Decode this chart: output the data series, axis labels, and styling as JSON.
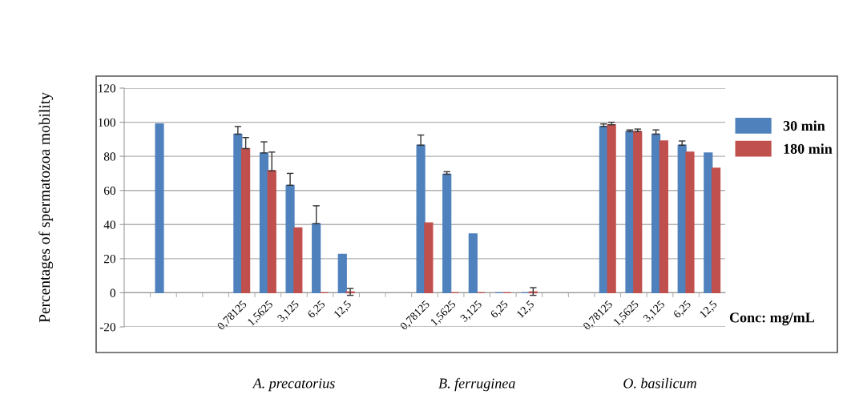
{
  "chart_data": {
    "type": "bar",
    "ylabel": "Percentages of spermatozoa mobility",
    "xlabel": "Conc: mg/mL",
    "categories": [
      null,
      null,
      null,
      null,
      "0,78125",
      "1,5625",
      "3,125",
      "6,25",
      "12,5",
      null,
      null,
      "0,78125",
      "1,5625",
      "3,125",
      "6,25",
      "12,5",
      null,
      null,
      "0,78125",
      "1,5625",
      "3,125",
      "6,25",
      "12,5"
    ],
    "series": [
      {
        "name": "30 min",
        "color": "#4f81bd",
        "values": [
          null,
          99,
          null,
          null,
          93,
          82,
          63,
          40.5,
          22.5,
          null,
          null,
          86.5,
          69.5,
          34.5,
          0,
          0,
          null,
          null,
          97.5,
          94.5,
          93,
          86.5,
          82
        ],
        "errors": [
          null,
          null,
          null,
          null,
          [
            93,
            97.5
          ],
          [
            82,
            88.5
          ],
          [
            63,
            70
          ],
          [
            40.5,
            51
          ],
          null,
          null,
          null,
          [
            86.5,
            92.5
          ],
          [
            69.5,
            71
          ],
          null,
          null,
          null,
          null,
          null,
          [
            97.5,
            99
          ],
          [
            94.5,
            95.5
          ],
          [
            93,
            95.5
          ],
          [
            86.5,
            89
          ],
          null
        ]
      },
      {
        "name": "180 min",
        "color": "#c0504d",
        "values": [
          null,
          null,
          null,
          null,
          84.5,
          71.5,
          38,
          0,
          0.5,
          null,
          null,
          41,
          0,
          0,
          0,
          0.5,
          null,
          null,
          98.5,
          94.5,
          89,
          82.5,
          73
        ],
        "errors": [
          null,
          null,
          null,
          null,
          [
            84.5,
            91
          ],
          [
            71.5,
            82.5
          ],
          null,
          null,
          [
            -1.5,
            2.5
          ],
          null,
          null,
          null,
          null,
          null,
          null,
          [
            -1.5,
            3
          ],
          null,
          null,
          [
            98.5,
            100
          ],
          [
            94.5,
            96
          ],
          null,
          null,
          null
        ]
      }
    ],
    "ylim": [
      -20,
      120
    ],
    "yticks": [
      -20,
      0,
      20,
      40,
      60,
      80,
      100,
      120
    ],
    "grid": "y",
    "legend": "top right",
    "annotations": [
      "A. precatorius",
      "B. ferruginea",
      "O. basilicum"
    ]
  }
}
